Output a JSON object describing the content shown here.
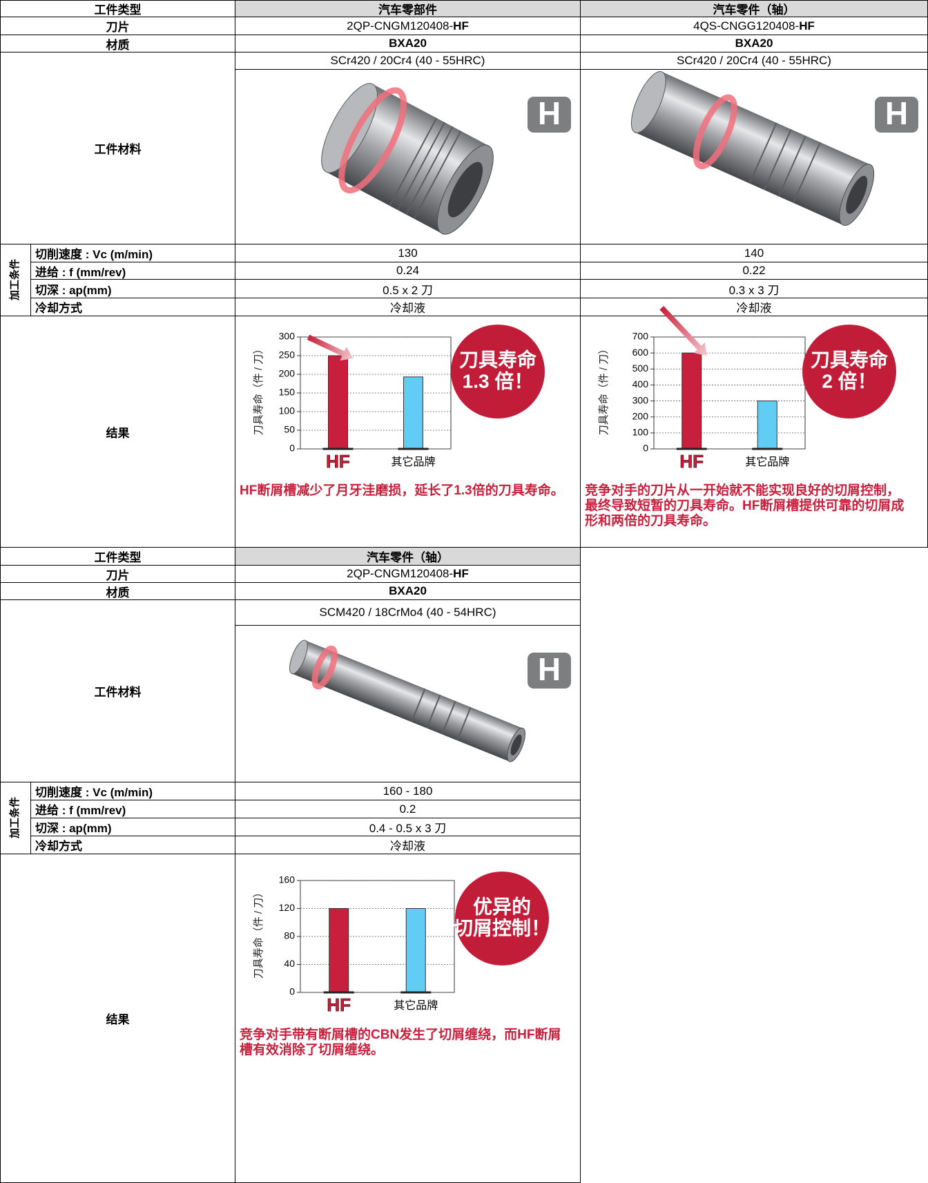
{
  "tables": [
    {
      "header": {
        "label": "工件类型",
        "columns": [
          "汽车零部件",
          "汽车零件（轴）"
        ]
      },
      "insert": {
        "label": "刀片",
        "columns": [
          {
            "code": "2QP-CNGM120408-",
            "suffix": "HF"
          },
          {
            "code": "4QS-CNGG120408-",
            "suffix": "HF"
          }
        ]
      },
      "grade": {
        "label": "材质",
        "columns": [
          "BXA20",
          "BXA20"
        ]
      },
      "workpiece": {
        "label": "工件材料",
        "columns": [
          {
            "material": "SCr420 / 20Cr4 (40 - 55HRC)",
            "badge": "H"
          },
          {
            "material": "SCr420 / 20Cr4 (40 - 55HRC)",
            "badge": "H"
          }
        ]
      },
      "conditions": {
        "label": "加工条件",
        "rows": [
          {
            "label": "切削速度 : Vc (m/min)",
            "values": [
              "130",
              "140"
            ]
          },
          {
            "label": "进给 : f (mm/rev)",
            "values": [
              "0.24",
              "0.22"
            ]
          },
          {
            "label": "切深 : ap(mm)",
            "values": [
              "0.5 x 2 刀",
              "0.3 x 3 刀"
            ]
          },
          {
            "label": "冷却方式",
            "values": [
              "冷却液",
              "冷却液"
            ]
          }
        ]
      },
      "result": {
        "label": "结果",
        "notes": [
          "HF断屑槽减少了月牙洼磨损，延长了1.3倍的刀具寿命。",
          "竞争对手的刀片从一开始就不能实现良好的切屑控制，最终导致短暂的刀具寿命。HF断屑槽提供可靠的切屑成形和两倍的刀具寿命。"
        ]
      }
    },
    {
      "header": {
        "label": "工件类型",
        "columns": [
          "汽车零件（轴）"
        ]
      },
      "insert": {
        "label": "刀片",
        "columns": [
          {
            "code": "2QP-CNGM120408-",
            "suffix": "HF"
          }
        ]
      },
      "grade": {
        "label": "材质",
        "columns": [
          "BXA20"
        ]
      },
      "workpiece": {
        "label": "工件材料",
        "columns": [
          {
            "material": "SCM420 / 18CrMo4 (40 - 54HRC)",
            "badge": "H"
          }
        ]
      },
      "conditions": {
        "label": "加工条件",
        "rows": [
          {
            "label": "切削速度 : Vc (m/min)",
            "values": [
              "160 - 180"
            ]
          },
          {
            "label": "进给 : f (mm/rev)",
            "values": [
              "0.2"
            ]
          },
          {
            "label": "切深 : ap(mm)",
            "values": [
              "0.4 - 0.5 x 3 刀"
            ]
          },
          {
            "label": "冷却方式",
            "values": [
              "冷却液"
            ]
          }
        ]
      },
      "result": {
        "label": "结果",
        "notes": [
          "竞争对手带有断屑槽的CBN发生了切屑缠绕，而HF断屑槽有效消除了切屑缠绕。"
        ]
      }
    }
  ],
  "chart_data": [
    {
      "type": "bar",
      "ylabel": "刀具寿命（件 / 刀）",
      "categories": [
        "HF",
        "其它品牌"
      ],
      "values": [
        250,
        193
      ],
      "colors": [
        "#c8203c",
        "#62cdf4"
      ],
      "ylim": [
        0,
        300
      ],
      "yticks": [
        0,
        50,
        100,
        150,
        200,
        250,
        300
      ],
      "grid": true,
      "annotation": [
        "刀具寿命",
        "1.3 倍！"
      ]
    },
    {
      "type": "bar",
      "ylabel": "刀具寿命（件 / 刀）",
      "categories": [
        "HF",
        "其它品牌"
      ],
      "values": [
        600,
        300
      ],
      "colors": [
        "#c8203c",
        "#62cdf4"
      ],
      "ylim": [
        0,
        700
      ],
      "yticks": [
        0,
        100,
        200,
        300,
        400,
        500,
        600,
        700
      ],
      "grid": true,
      "annotation": [
        "刀具寿命",
        "2 倍！"
      ]
    },
    {
      "type": "bar",
      "ylabel": "刀具寿命（件 / 刀）",
      "categories": [
        "HF",
        "其它品牌"
      ],
      "values": [
        120,
        120
      ],
      "colors": [
        "#c8203c",
        "#62cdf4"
      ],
      "ylim": [
        0,
        160
      ],
      "yticks": [
        0,
        40,
        80,
        120,
        160
      ],
      "grid": true,
      "annotation": [
        "优异的",
        "切屑控制！"
      ]
    }
  ]
}
